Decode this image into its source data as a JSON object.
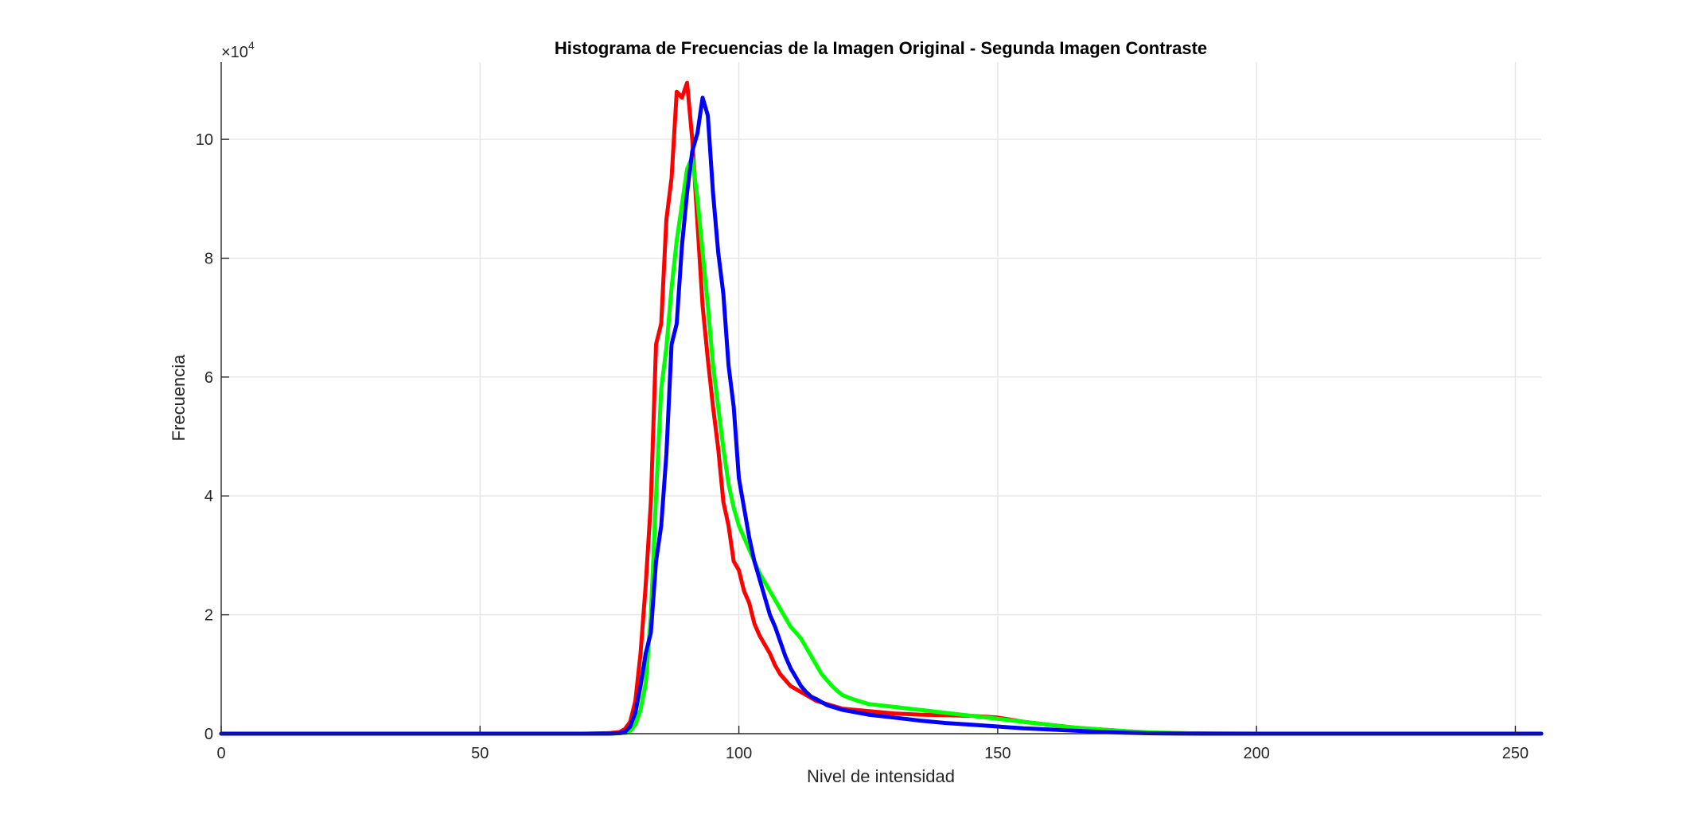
{
  "chart_data": {
    "type": "line",
    "title": "Histograma de Frecuencias de la Imagen Original - Segunda Imagen Contraste",
    "xlabel": "Nivel de intensidad",
    "ylabel": "Frecuencia",
    "xlim": [
      0,
      255
    ],
    "ylim": [
      0,
      113000
    ],
    "grid": true,
    "y_exponent_label": "×10",
    "y_exponent_power": "4",
    "y_exponent": 4,
    "xticks": [
      0,
      50,
      100,
      150,
      200,
      250
    ],
    "xtick_labels": [
      "0",
      "50",
      "100",
      "150",
      "200",
      "250"
    ],
    "yticks": [
      0,
      20000,
      40000,
      60000,
      80000,
      100000
    ],
    "ytick_labels": [
      "0",
      "2",
      "4",
      "6",
      "8",
      "10"
    ],
    "series": [
      {
        "color": "#ff0000",
        "x": [
          0,
          70,
          75,
          77,
          78,
          79,
          80,
          81,
          82,
          83,
          84,
          85,
          86,
          87,
          88,
          89,
          90,
          91,
          92,
          93,
          94,
          95,
          96,
          97,
          98,
          99,
          100,
          101,
          102,
          103,
          104,
          105,
          106,
          107,
          108,
          110,
          112,
          115,
          120,
          125,
          130,
          135,
          140,
          145,
          150,
          155,
          160,
          165,
          170,
          175,
          180,
          185,
          190,
          200,
          255
        ],
        "y": [
          0,
          0,
          100,
          300,
          800,
          2000,
          5500,
          13500,
          25000,
          39000,
          65500,
          69000,
          86500,
          93500,
          108000,
          107000,
          109500,
          100000,
          86000,
          72000,
          63000,
          55000,
          48000,
          39000,
          35000,
          29000,
          27500,
          24000,
          22000,
          18500,
          16500,
          15000,
          13500,
          11500,
          10000,
          8000,
          7000,
          5500,
          4200,
          3800,
          3400,
          3200,
          3100,
          3000,
          2700,
          2000,
          1500,
          1000,
          700,
          400,
          150,
          80,
          30,
          0,
          0
        ]
      },
      {
        "color": "#00ff00",
        "x": [
          0,
          75,
          78,
          79,
          80,
          81,
          82,
          83,
          84,
          85,
          86,
          87,
          88,
          89,
          90,
          91,
          92,
          93,
          94,
          95,
          96,
          97,
          98,
          99,
          100,
          101,
          102,
          103,
          104,
          105,
          106,
          107,
          108,
          109,
          110,
          111,
          112,
          113,
          114,
          115,
          116,
          117,
          118,
          119,
          120,
          122,
          125,
          130,
          135,
          140,
          145,
          150,
          155,
          160,
          165,
          170,
          175,
          180,
          185,
          190,
          200,
          255
        ],
        "y": [
          0,
          0,
          100,
          500,
          1500,
          4000,
          8500,
          20000,
          40000,
          58000,
          65000,
          75000,
          83000,
          89000,
          95000,
          97000,
          90000,
          81000,
          72000,
          62000,
          55000,
          48000,
          42000,
          38000,
          35000,
          33000,
          31000,
          29000,
          27000,
          25500,
          24000,
          22500,
          21000,
          19500,
          18000,
          17000,
          16000,
          14500,
          13000,
          11500,
          10000,
          9000,
          8000,
          7200,
          6500,
          5800,
          5000,
          4500,
          4000,
          3500,
          3000,
          2500,
          2000,
          1500,
          1000,
          700,
          400,
          200,
          100,
          40,
          0,
          0
        ]
      },
      {
        "color": "#0000ff",
        "x": [
          0,
          75,
          77,
          78,
          79,
          80,
          81,
          82,
          83,
          84,
          85,
          86,
          87,
          88,
          89,
          90,
          91,
          92,
          93,
          94,
          95,
          96,
          97,
          98,
          99,
          100,
          101,
          102,
          103,
          104,
          105,
          106,
          107,
          108,
          109,
          110,
          111,
          112,
          113,
          114,
          115,
          117,
          120,
          125,
          130,
          135,
          140,
          145,
          150,
          155,
          160,
          165,
          170,
          175,
          180,
          185,
          190,
          200,
          255
        ],
        "y": [
          0,
          0,
          100,
          300,
          1200,
          3500,
          8000,
          13500,
          17000,
          29000,
          35000,
          47000,
          65500,
          69000,
          82000,
          91000,
          98000,
          101000,
          107000,
          104000,
          91000,
          81000,
          74000,
          62000,
          55000,
          43000,
          38000,
          33000,
          29000,
          26000,
          23000,
          20000,
          18000,
          15500,
          13000,
          11000,
          9500,
          8000,
          7000,
          6200,
          5800,
          4800,
          4000,
          3200,
          2700,
          2200,
          1800,
          1500,
          1200,
          900,
          700,
          500,
          300,
          150,
          60,
          20,
          0,
          0,
          0
        ]
      }
    ]
  }
}
